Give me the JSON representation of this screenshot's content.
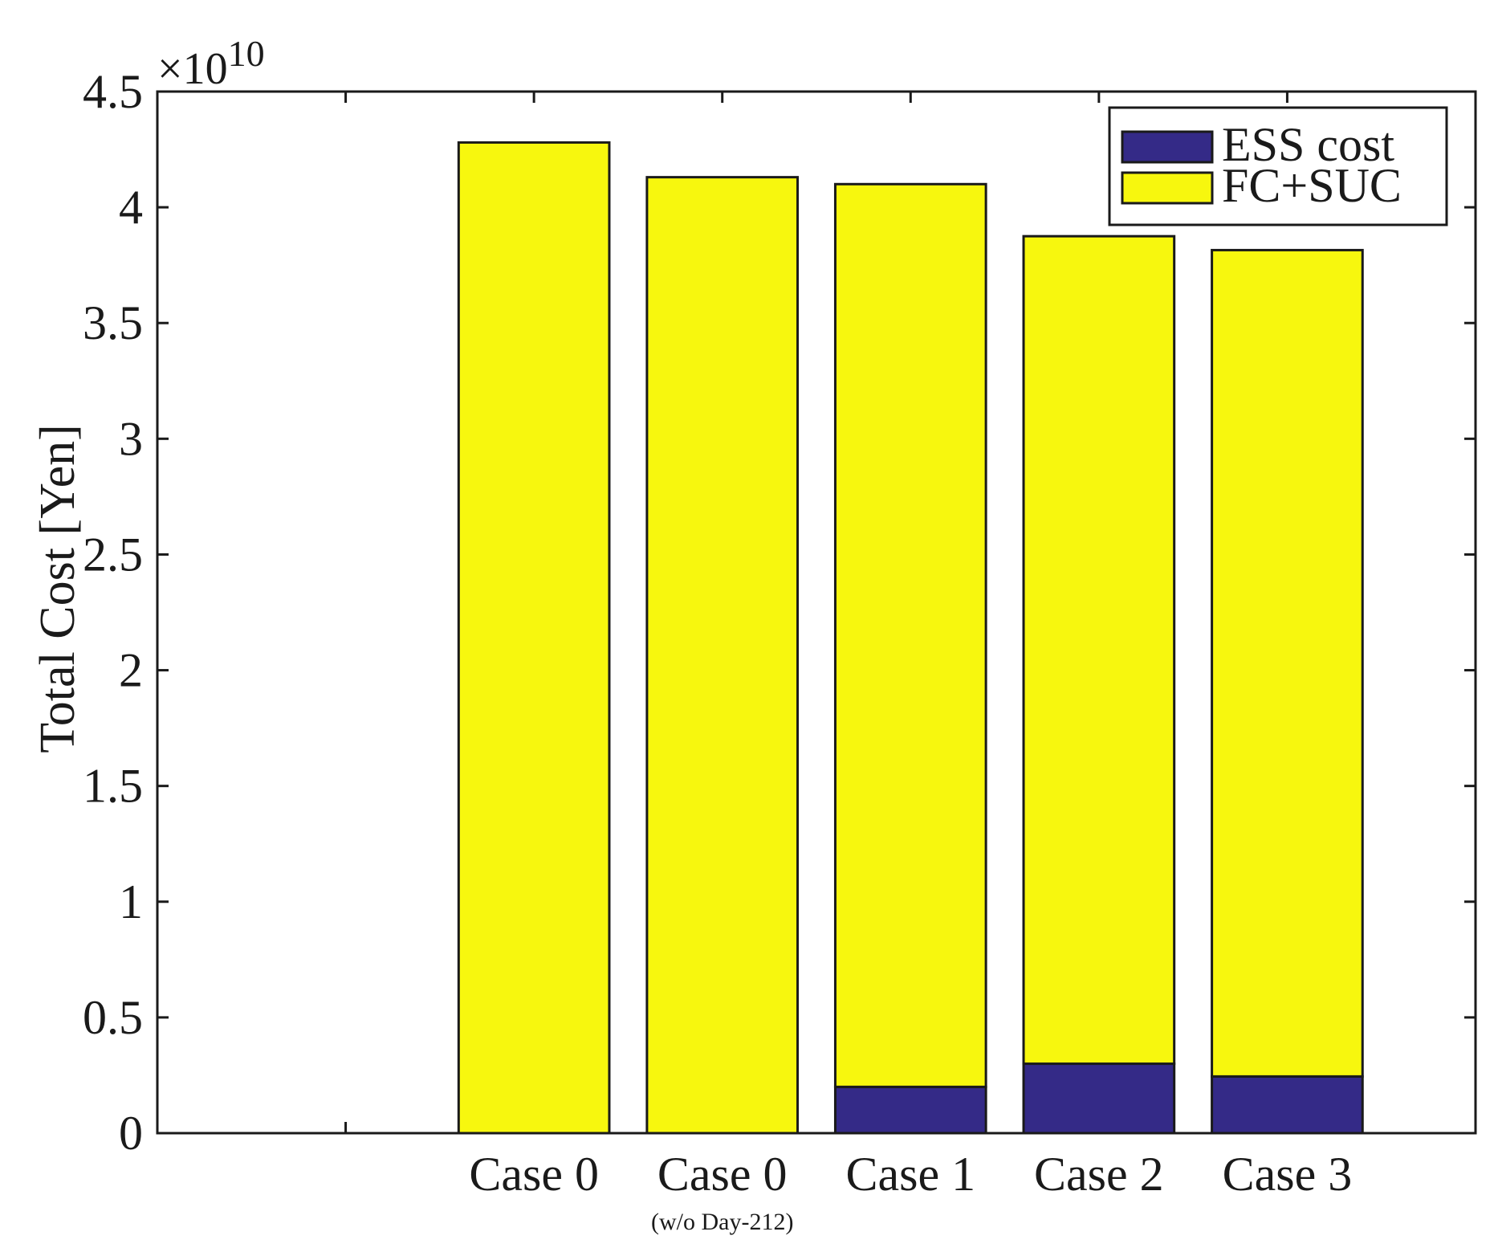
{
  "chart_data": {
    "type": "bar",
    "stacked": true,
    "categories": [
      "Case 0",
      "Case 0",
      "Case 1",
      "Case 2",
      "Case 3"
    ],
    "category_sublabels": [
      "",
      "(w/o Day-212)",
      "",
      "",
      ""
    ],
    "series": [
      {
        "name": "ESS cost",
        "color": "#342a87",
        "values": [
          0,
          0,
          0.2,
          0.3,
          0.245
        ]
      },
      {
        "name": "FC+SUC",
        "color": "#f7f70e",
        "values": [
          4.28,
          4.13,
          3.9,
          3.575,
          3.57
        ]
      }
    ],
    "totals": [
      4.28,
      4.13,
      4.1,
      3.875,
      3.815
    ],
    "ylabel": "Total Cost [Yen]",
    "ylim": [
      0,
      4.5
    ],
    "yticks": [
      "0",
      "0.5",
      "1",
      "1.5",
      "2",
      "2.5",
      "3",
      "3.5",
      "4",
      "4.5"
    ],
    "y_multiplier": {
      "base": "×10",
      "exponent": "10"
    },
    "legend": {
      "position": "top-right"
    },
    "grid": false
  }
}
